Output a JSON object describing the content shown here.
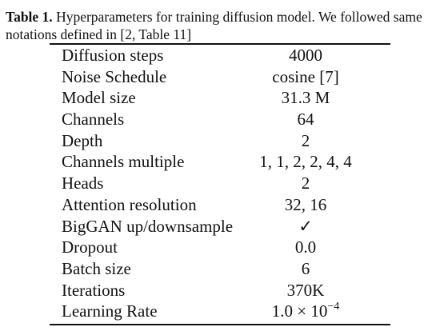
{
  "caption": {
    "label": "Table 1.",
    "text": " Hyperparameters for training diffusion model. We followed same notations defined in [2, Table 11]"
  },
  "table": {
    "rows": [
      {
        "name": "Diffusion steps",
        "value": "4000"
      },
      {
        "name": "Noise Schedule",
        "value": "cosine [7]"
      },
      {
        "name": "Model size",
        "value": "31.3 M"
      },
      {
        "name": "Channels",
        "value": "64"
      },
      {
        "name": "Depth",
        "value": "2"
      },
      {
        "name": "Channels multiple",
        "value": "1, 1, 2, 2, 4, 4"
      },
      {
        "name": "Heads",
        "value": "2"
      },
      {
        "name": "Attention resolution",
        "value": "32, 16"
      },
      {
        "name": "BigGAN up/downsample",
        "value": "✓"
      },
      {
        "name": "Dropout",
        "value": "0.0"
      },
      {
        "name": "Batch size",
        "value": "6"
      },
      {
        "name": "Iterations",
        "value": "370K"
      },
      {
        "name": "Learning Rate",
        "value": "1.0 × 10",
        "exponent": "−4"
      }
    ]
  }
}
